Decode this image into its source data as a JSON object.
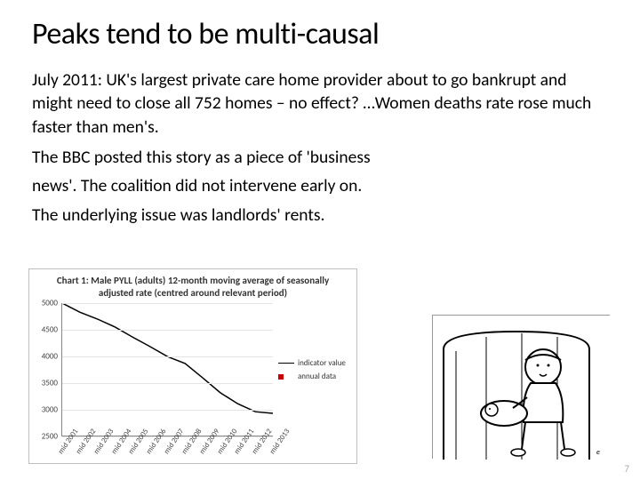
{
  "title": "Peaks tend to be multi-causal",
  "paragraphs": [
    "July 2011: UK's largest private care home provider about to go bankrupt and might need to close all 752 homes – no effect? …Women deaths rate rose much faster than men's.",
    "The BBC posted this story as a piece of 'business",
    "news'. The coalition did not intervene early on.",
    "The underlying issue was landlords' rents."
  ],
  "chart": {
    "title": "Chart 1: Male PYLL (adults) 12-month moving average of seasonally adjusted rate (centred around relevant period)",
    "ylim": [
      2500,
      5000
    ],
    "ytick_step": 500,
    "yticks": [
      2500,
      3000,
      3500,
      4000,
      4500,
      5000
    ],
    "x_labels": [
      "mid 2001",
      "mid 2002",
      "mid 2003",
      "mid 2004",
      "mid 2005",
      "mid 2006",
      "mid 2007",
      "mid 2008",
      "mid 2009",
      "mid 2010",
      "mid 2011",
      "mid 2012",
      "mid 2013"
    ],
    "line_values": [
      5000,
      4830,
      4700,
      4550,
      4360,
      4180,
      3990,
      3860,
      3590,
      3310,
      3100,
      2950,
      2920
    ],
    "line_color": "#000000",
    "grid_color": "#e5e5e5",
    "background_color": "#ffffff",
    "border_color": "#bfbfbf",
    "legend": [
      {
        "label": "indicator value",
        "type": "line",
        "color": "#000000"
      },
      {
        "label": "annual data",
        "type": "dot",
        "color": "#cc0000"
      }
    ]
  },
  "page_number": "7"
}
